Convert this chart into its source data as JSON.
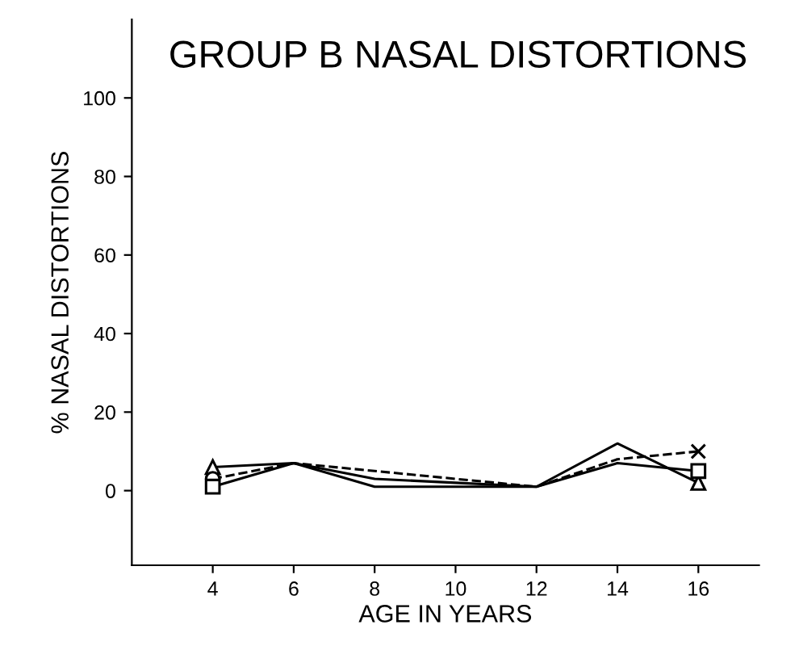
{
  "chart_data": {
    "type": "line",
    "title": "GROUP B NASAL DISTORTIONS",
    "xlabel": "AGE IN YEARS",
    "ylabel": "% NASAL DISTORTIONS",
    "x": [
      4,
      6,
      8,
      10,
      12,
      14,
      16
    ],
    "xlim": [
      2,
      17.5
    ],
    "xticks": [
      4,
      6,
      8,
      10,
      12,
      14,
      16
    ],
    "ylim": [
      -19,
      120
    ],
    "yticks": [
      0,
      20,
      40,
      60,
      80,
      100
    ],
    "grid": false,
    "legend": false,
    "series": [
      {
        "color": "#000000",
        "line_style": "solid",
        "values": [
          6,
          7,
          1,
          1,
          1,
          12,
          2
        ]
      },
      {
        "color": "#000000",
        "line_style": "dashed",
        "values": [
          3,
          7,
          5,
          3,
          1,
          8,
          10
        ]
      },
      {
        "color": "#000000",
        "line_style": "solid",
        "values": [
          1,
          7,
          3,
          2,
          1,
          7,
          5
        ]
      },
      {
        "type": "scatter",
        "color": "#000000",
        "marker": "triangle",
        "values": [
          6,
          null,
          null,
          null,
          null,
          null,
          2
        ]
      },
      {
        "type": "scatter",
        "color": "#000000",
        "marker": "cross",
        "values": [
          null,
          null,
          null,
          null,
          null,
          null,
          10
        ]
      },
      {
        "type": "scatter",
        "color": "#000000",
        "marker": "circle",
        "values": [
          3,
          null,
          null,
          null,
          null,
          null,
          null
        ]
      },
      {
        "type": "scatter",
        "color": "#000000",
        "marker": "square",
        "values": [
          1,
          null,
          null,
          null,
          null,
          null,
          5
        ]
      }
    ]
  }
}
